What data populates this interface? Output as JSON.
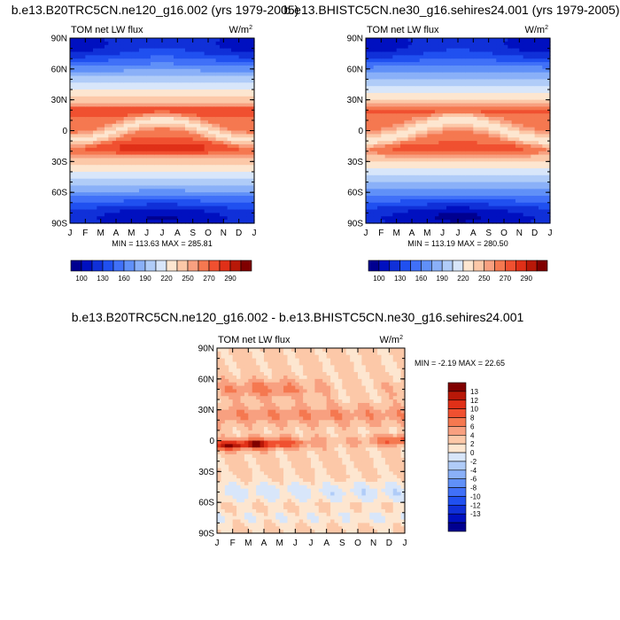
{
  "chart_data": [
    {
      "type": "heatmap",
      "title": "b.e13.B20TRC5CN.ne120_g16.002 (yrs 1979-2005)",
      "subtitle": "TOM net LW flux",
      "units": "W/m",
      "units_superscript": "2",
      "x_ticks": [
        "J",
        "F",
        "M",
        "A",
        "M",
        "J",
        "J",
        "A",
        "S",
        "O",
        "N",
        "D",
        "J"
      ],
      "y_ticks": [
        "90N",
        "60N",
        "30N",
        "0",
        "30S",
        "60S",
        "90S"
      ],
      "xlim": [
        0,
        12
      ],
      "ylim": [
        -90,
        90
      ],
      "stats": "MIN = 113.63 MAX = 285.81",
      "min": 113.63,
      "max": 285.81
    },
    {
      "type": "heatmap",
      "title": "b.e13.BHISTC5CN.ne30_g16.sehires24.001 (yrs 1979-2005)",
      "subtitle": "TOM net LW flux",
      "units": "W/m",
      "units_superscript": "2",
      "x_ticks": [
        "J",
        "F",
        "M",
        "A",
        "M",
        "J",
        "J",
        "A",
        "S",
        "O",
        "N",
        "D",
        "J"
      ],
      "y_ticks": [
        "90N",
        "60N",
        "30N",
        "0",
        "30S",
        "60S",
        "90S"
      ],
      "xlim": [
        0,
        12
      ],
      "ylim": [
        -90,
        90
      ],
      "stats": "MIN = 113.19 MAX = 280.50",
      "min": 113.19,
      "max": 280.5
    },
    {
      "type": "heatmap",
      "title": "b.e13.B20TRC5CN.ne120_g16.002 - b.e13.BHISTC5CN.ne30_g16.sehires24.001",
      "subtitle": "TOM net LW flux",
      "units": "W/m",
      "units_superscript": "2",
      "x_ticks": [
        "J",
        "F",
        "M",
        "A",
        "M",
        "J",
        "J",
        "A",
        "S",
        "O",
        "N",
        "D",
        "J"
      ],
      "y_ticks": [
        "90N",
        "60N",
        "30N",
        "0",
        "30S",
        "60S",
        "90S"
      ],
      "xlim": [
        0,
        12
      ],
      "ylim": [
        -90,
        90
      ],
      "stats": "MIN =  -2.19 MAX =  22.65",
      "min": -2.19,
      "max": 22.65
    }
  ],
  "colorbars": {
    "absolute": {
      "labels": [
        "100",
        "130",
        "160",
        "190",
        "220",
        "250",
        "270",
        "290"
      ],
      "levels": [
        90,
        100,
        115,
        130,
        145,
        160,
        175,
        190,
        205,
        220,
        235,
        250,
        260,
        270,
        280,
        290,
        300
      ],
      "colors": [
        "#000090",
        "#0010c0",
        "#1030d8",
        "#2050f0",
        "#4070f8",
        "#6090f8",
        "#8ab0f8",
        "#b0ccf8",
        "#d8e6fa",
        "#fde6d0",
        "#fcc8a8",
        "#f8a080",
        "#f57850",
        "#f05030",
        "#e03018",
        "#b81808",
        "#800000"
      ]
    },
    "difference": {
      "labels": [
        "13",
        "12",
        "10",
        "8",
        "6",
        "4",
        "2",
        "0",
        "-2",
        "-4",
        "-6",
        "-8",
        "-10",
        "-12",
        "-13"
      ],
      "levels": [
        -14,
        -13,
        -12,
        -10,
        -8,
        -6,
        -4,
        -2,
        0,
        2,
        4,
        6,
        8,
        10,
        12,
        13,
        14
      ],
      "colors": [
        "#000090",
        "#0010c0",
        "#1030d8",
        "#2050f0",
        "#4070f8",
        "#6090f8",
        "#8ab0f8",
        "#b0ccf8",
        "#d8e6fa",
        "#fde6d0",
        "#fcc8a8",
        "#f8a080",
        "#f57850",
        "#f05030",
        "#e03018",
        "#b81808",
        "#800000"
      ]
    }
  }
}
